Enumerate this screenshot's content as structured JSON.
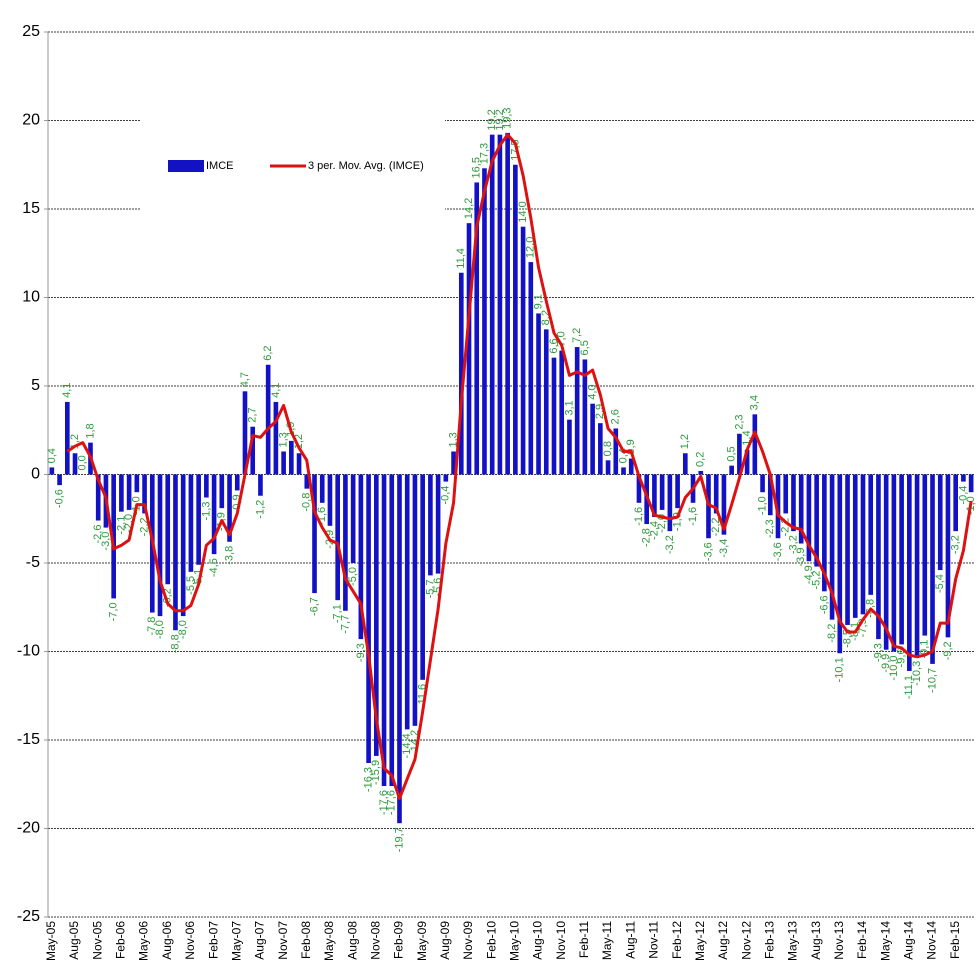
{
  "chart_data": {
    "type": "bar",
    "categories": [
      "May-05",
      null,
      null,
      "Aug-05",
      null,
      null,
      "Nov-05",
      null,
      null,
      "Feb-06",
      null,
      null,
      "May-06",
      null,
      null,
      "Aug-06",
      null,
      null,
      "Nov-06",
      null,
      null,
      "Feb-07",
      null,
      null,
      "May-07",
      null,
      null,
      "Aug-07",
      null,
      null,
      "Nov-07",
      null,
      null,
      "Feb-08",
      null,
      null,
      "May-08",
      null,
      null,
      "Aug-08",
      null,
      null,
      "Nov-08",
      null,
      null,
      "Feb-09",
      null,
      null,
      "May-09",
      null,
      null,
      "Aug-09",
      null,
      null,
      "Nov-09",
      null,
      null,
      "Feb-10",
      null,
      null,
      "May-10",
      null,
      null,
      "Aug-10",
      null,
      null,
      "Nov-10",
      null,
      null,
      "Feb-11",
      null,
      null,
      "May-11",
      null,
      null,
      "Aug-11",
      null,
      null,
      "Nov-11",
      null,
      null,
      "Feb-12",
      null,
      null,
      "May-12",
      null,
      null,
      "Aug-12",
      null,
      null,
      "Nov-12",
      null,
      null,
      "Feb-13",
      null,
      null,
      "May-13",
      null,
      null,
      "Aug-13",
      null,
      null,
      "Nov-13",
      null,
      null,
      "Feb-14",
      null,
      null,
      "May-14",
      null,
      null,
      "Aug-14",
      null,
      null,
      "Nov-14",
      null,
      null,
      "Feb-15",
      null,
      null
    ],
    "series": [
      {
        "name": "IMCE",
        "color": "#1212c4",
        "label_color": "#2e9a3e",
        "values": [
          0.4,
          -0.6,
          4.1,
          1.2,
          0.0,
          1.8,
          -2.6,
          -3.0,
          -7.0,
          -2.1,
          -2.0,
          -1.0,
          -2.2,
          -7.8,
          -8.0,
          -6.2,
          -8.8,
          -8.0,
          -5.5,
          -5.1,
          -1.3,
          -4.5,
          -1.9,
          -3.8,
          -0.9,
          4.7,
          2.7,
          -1.2,
          6.2,
          4.1,
          1.3,
          1.9,
          1.2,
          -0.8,
          -6.7,
          -1.6,
          -2.9,
          -7.1,
          -7.7,
          -5.0,
          -9.3,
          -16.3,
          -15.9,
          -17.6,
          -17.6,
          -19.7,
          -14.4,
          -14.2,
          -11.6,
          -5.7,
          -5.6,
          -0.4,
          1.3,
          11.4,
          14.2,
          16.5,
          17.3,
          19.2,
          19.2,
          19.3,
          17.5,
          14.0,
          12.0,
          9.1,
          8.2,
          6.6,
          7.0,
          3.1,
          7.2,
          6.5,
          4.0,
          2.9,
          0.8,
          2.6,
          0.4,
          0.9,
          -1.6,
          -2.8,
          -2.4,
          -2.0,
          -3.2,
          -1.9,
          1.2,
          -1.6,
          0.2,
          -3.6,
          -2.2,
          -3.4,
          0.5,
          2.3,
          1.4,
          3.4,
          -1.0,
          -2.3,
          -3.6,
          -2.2,
          -3.2,
          -3.9,
          -4.9,
          -5.2,
          -6.6,
          -8.2,
          -10.1,
          -8.5,
          -8.1,
          -7.9,
          -6.8,
          -9.3,
          -9.9,
          -10.0,
          -9.6,
          -11.1,
          -10.3,
          -9.1,
          -10.7,
          -5.4,
          -9.2,
          -3.2,
          -0.4,
          -1.0
        ],
        "value_labels": [
          "0,4",
          "-0,6",
          "4,1",
          "1,2",
          "0,0",
          "1,8",
          "-2,6",
          "-3,0",
          "-7,0",
          "-2,1",
          "-2,0",
          "-1,0",
          "-2,2",
          "-7,8",
          "-8,0",
          "-6,2",
          "-8,8",
          "-8,0",
          "-5,5",
          "-5,1",
          "-1,3",
          "-4,5",
          "-1,9",
          "-3,8",
          "-0,9",
          "4,7",
          "2,7",
          "-1,2",
          "6,2",
          "4,1",
          "1,3",
          "1,9",
          "1,2",
          "-0,8",
          "-6,7",
          "-1,6",
          "-2,9",
          "-7,1",
          "-7,7",
          "-5,0",
          "-9,3",
          "-16,3",
          "-15,9",
          "-17,6",
          "-17,6",
          "-19,7",
          "-14,4",
          "-14,2",
          "-11,6",
          "-5,7",
          "-5,6",
          "-0,4",
          "1,3",
          "11,4",
          "14,2",
          "16,5",
          "17,3",
          "19,2",
          "19,2",
          "19,3",
          "17,5",
          "14,0",
          "12,0",
          "9,1",
          "8,2",
          "6,6",
          "7,0",
          "3,1",
          "7,2",
          "6,5",
          "4,0",
          "2,9",
          "0,8",
          "2,6",
          "0,4",
          "0,9",
          "-1,6",
          "-2,8",
          "-2,4",
          "-2,0",
          "-3,2",
          "-1,9",
          "1,2",
          "-1,6",
          "0,2",
          "-3,6",
          "-2,2",
          "-3,4",
          "0,5",
          "2,3",
          "1,4",
          "3,4",
          "-1,0",
          "-2,3",
          "-3,6",
          "-2,2",
          "-3,2",
          "-3,9",
          "-4,9",
          "-5,2",
          "-6,6",
          "-8,2",
          "-10,1",
          "-8,5",
          "-8,1",
          "-7,9",
          "-6,8",
          "-9,3",
          "-9,9",
          "-10,0",
          "-9,6",
          "-11,1",
          "-10,3",
          "-9,1",
          "-10,7",
          "-5,4",
          "-9,2",
          "-3,2",
          "-0,4",
          "-1,0"
        ]
      },
      {
        "name": "3 per. Mov. Avg. (IMCE)",
        "type": "line",
        "color": "#dd1111",
        "values": [
          null,
          null,
          1.3,
          1.6,
          1.8,
          1.0,
          -0.3,
          -1.3,
          -4.2,
          -4.0,
          -3.7,
          -1.7,
          -1.7,
          -3.7,
          -6.0,
          -7.3,
          -7.7,
          -7.7,
          -7.4,
          -6.2,
          -4.0,
          -3.6,
          -2.6,
          -3.4,
          -2.2,
          0.0,
          2.2,
          2.1,
          2.6,
          3.0,
          3.9,
          2.4,
          1.5,
          0.8,
          -2.1,
          -3.0,
          -3.7,
          -3.9,
          -5.9,
          -6.6,
          -7.3,
          -10.2,
          -13.8,
          -16.6,
          -17.0,
          -18.3,
          -17.2,
          -16.1,
          -13.4,
          -10.5,
          -7.6,
          -3.9,
          -1.6,
          4.1,
          9.0,
          14.0,
          16.0,
          17.7,
          18.6,
          19.2,
          18.7,
          16.9,
          14.5,
          11.7,
          9.8,
          8.0,
          7.3,
          5.6,
          5.8,
          5.6,
          5.9,
          4.5,
          2.6,
          2.1,
          1.3,
          1.3,
          -0.1,
          -1.2,
          -2.3,
          -2.4,
          -2.5,
          -2.4,
          -1.3,
          -0.8,
          -0.1,
          -1.7,
          -1.9,
          -3.1,
          -1.7,
          -0.2,
          1.4,
          2.4,
          1.3,
          0.0,
          -2.3,
          -2.7,
          -3.0,
          -3.1,
          -4.0,
          -4.7,
          -5.6,
          -6.7,
          -8.3,
          -8.9,
          -8.9,
          -8.2,
          -7.6,
          -8.0,
          -8.7,
          -9.7,
          -9.8,
          -10.2,
          -10.3,
          -10.2,
          -10.0,
          -8.4,
          -8.4,
          -5.9,
          -4.3,
          -1.5
        ]
      }
    ],
    "ylim": [
      -25,
      25
    ],
    "yticks": [
      -25,
      -20,
      -15,
      -10,
      -5,
      0,
      5,
      10,
      15,
      20,
      25
    ],
    "grid": true
  }
}
